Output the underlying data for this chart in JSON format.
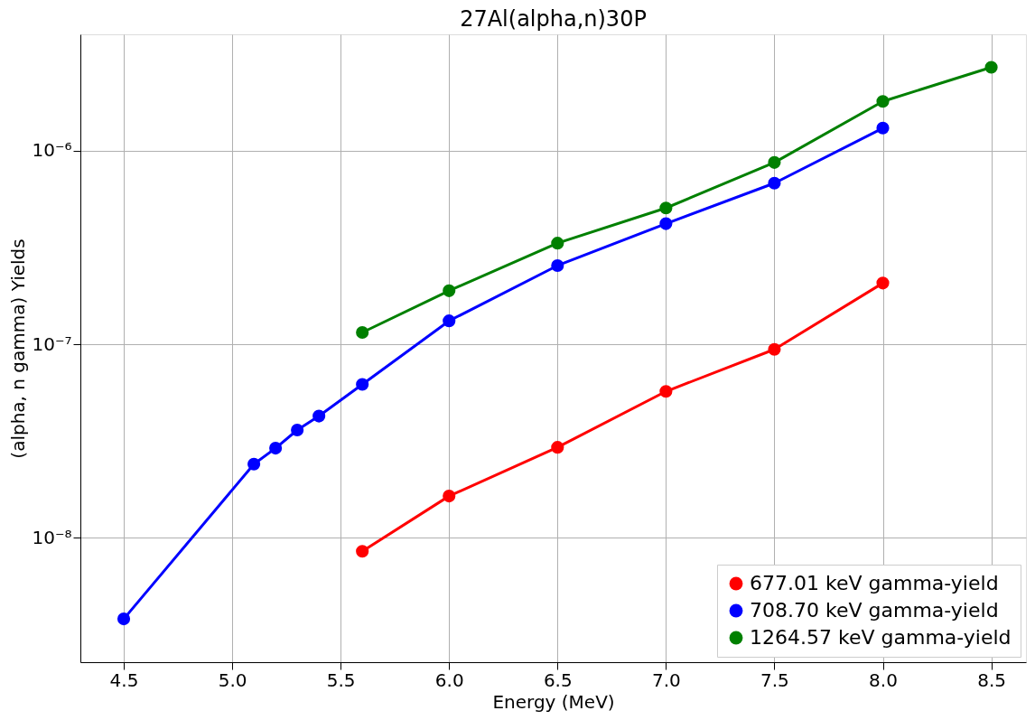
{
  "chart_data": {
    "type": "line",
    "title": "27Al(alpha,n)30P",
    "xlabel": "Energy (MeV)",
    "ylabel": "(alpha, n gamma) Yields",
    "log": "y",
    "grid": true,
    "legend": "bottom right",
    "marker": "circle",
    "line_style": "solid",
    "xlim": [
      4.3,
      8.66
    ],
    "ylim": [
      2.27e-09,
      4e-06
    ],
    "xticks": [
      {
        "value": 4.5,
        "label": "4.5"
      },
      {
        "value": 5.0,
        "label": "5.0"
      },
      {
        "value": 5.5,
        "label": "5.5"
      },
      {
        "value": 6.0,
        "label": "6.0"
      },
      {
        "value": 6.5,
        "label": "6.5"
      },
      {
        "value": 7.0,
        "label": "7.0"
      },
      {
        "value": 7.5,
        "label": "7.5"
      },
      {
        "value": 8.0,
        "label": "8.0"
      },
      {
        "value": 8.5,
        "label": "8.5"
      }
    ],
    "yticks": [
      {
        "value": 1e-08,
        "label": "10⁻⁸"
      },
      {
        "value": 1e-07,
        "label": "10⁻⁷"
      },
      {
        "value": 1e-06,
        "label": "10⁻⁶"
      }
    ],
    "series": [
      {
        "name": "677.01 keV gamma-yield",
        "color": "#ff0000",
        "x": [
          5.6,
          6.0,
          6.5,
          7.0,
          7.5,
          8.0
        ],
        "values": [
          8.5e-09,
          1.64e-08,
          2.93e-08,
          5.7e-08,
          9.4e-08,
          2.07e-07
        ]
      },
      {
        "name": "708.70 keV gamma-yield",
        "color": "#0000ff",
        "x": [
          4.5,
          5.1,
          5.2,
          5.3,
          5.4,
          5.6,
          6.0,
          6.5,
          7.0,
          7.5,
          8.0
        ],
        "values": [
          3.8e-09,
          2.4e-08,
          2.9e-08,
          3.6e-08,
          4.25e-08,
          6.2e-08,
          1.32e-07,
          2.55e-07,
          4.2e-07,
          6.8e-07,
          1.31e-06
        ]
      },
      {
        "name": "1264.57 keV gamma-yield",
        "color": "#008000",
        "x": [
          5.6,
          6.0,
          6.5,
          7.0,
          7.5,
          8.0,
          8.5
        ],
        "values": [
          1.15e-07,
          1.89e-07,
          3.33e-07,
          5.06e-07,
          8.7e-07,
          1.8e-06,
          2.7e-06
        ]
      }
    ]
  }
}
